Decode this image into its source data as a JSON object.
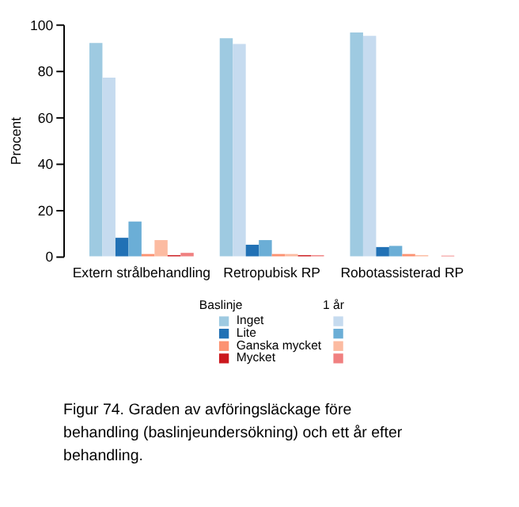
{
  "chart_data": {
    "type": "bar",
    "ylabel": "Procent",
    "categories": [
      "Extern strålbehandling",
      "Retropubisk RP",
      "Robotassisterad RP"
    ],
    "series": [
      {
        "name": "Inget",
        "color": "#9ecae1",
        "values": [
          92,
          94,
          96.5
        ]
      },
      {
        "color": "#c6dbef",
        "values": [
          77,
          91.5,
          95
        ]
      },
      {
        "name": "Lite",
        "color": "#2171b5",
        "values": [
          8,
          5,
          4
        ]
      },
      {
        "color": "#6baed6",
        "values": [
          15,
          7,
          4.5
        ]
      },
      {
        "name": "Ganska mycket",
        "color": "#fc9272",
        "values": [
          1,
          1,
          1
        ]
      },
      {
        "color": "#fcbba1",
        "values": [
          7,
          1,
          0.5
        ]
      },
      {
        "name": "Mycket",
        "color": "#cb181d",
        "values": [
          0.5,
          0.5,
          0
        ]
      },
      {
        "color": "#f08080",
        "values": [
          1.5,
          0.5,
          0.3
        ]
      }
    ],
    "ylim": [
      0,
      100
    ],
    "yticks": [
      0,
      20,
      40,
      60,
      80,
      100
    ],
    "grid": false,
    "legend": "bottom",
    "annotations": [
      "Baslinje",
      "1 år",
      "Figur 74. Graden av avföringsläckage före behandling (baslinjeundersökning) och ett år efter behandling."
    ]
  }
}
